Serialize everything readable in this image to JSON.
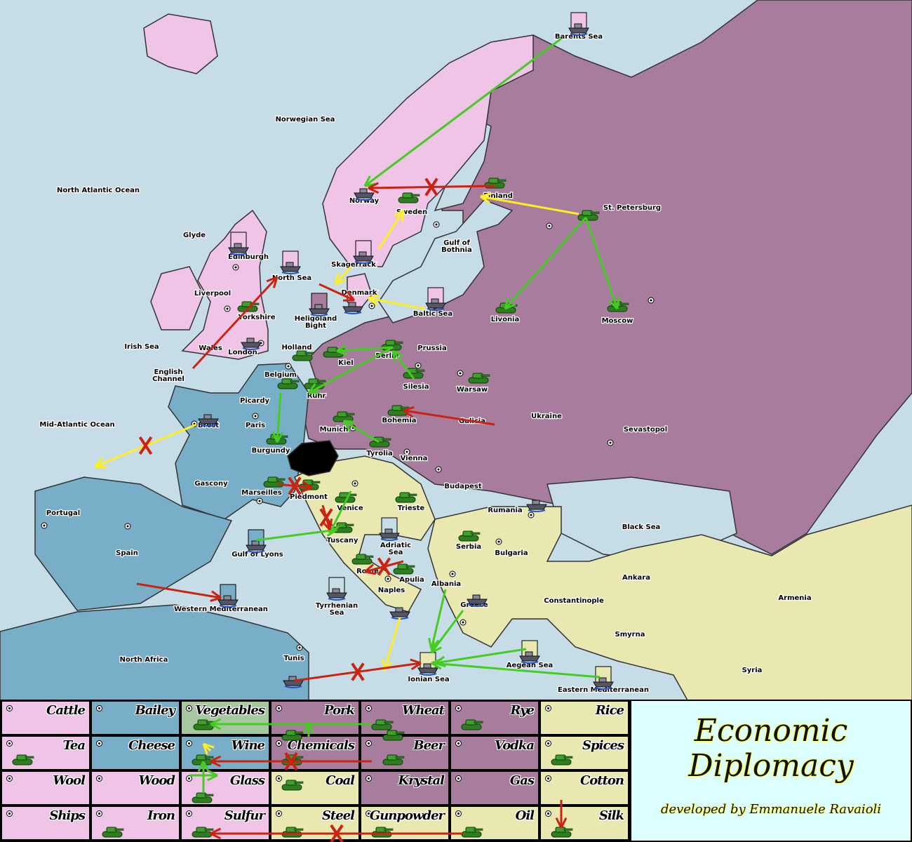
{
  "colors": {
    "sea": "#c6dde8",
    "england_scandinavia": "#f0c4e6",
    "france": "#78aec8",
    "central_east": "#a87c9c",
    "south": "#e8e8b0",
    "vegetables_cell": "#a6c8a0",
    "move_support": "#44cc22",
    "move_convoy": "#ffee22",
    "move_attack": "#cc2211",
    "title_bg": "#dcffff"
  },
  "map": {
    "labels": [
      "Barents Sea",
      "Norwegian Sea",
      "North Atlantic Ocean",
      "Finland",
      "St. Petersburg",
      "Norway",
      "Sweden",
      "Gulf of",
      "Bothnia",
      "Glyde",
      "Edinburgh",
      "Skagerrack",
      "North Sea",
      "Liverpool",
      "Denmark",
      "Baltic Sea",
      "Yorkshire",
      "Heligoland",
      "Bight",
      "Livonia",
      "Moscow",
      "Irish Sea",
      "Wales",
      "London",
      "Holland",
      "Prussia",
      "Kiel",
      "Berlin",
      "English",
      "Channel",
      "Belgium",
      "Silesia",
      "Warsaw",
      "Ruhr",
      "Picardy",
      "Ukraine",
      "Mid-Atlantic Ocean",
      "Brest",
      "Paris",
      "Bohemia",
      "Galicia",
      "Sevastopol",
      "Munich",
      "Burgundy",
      "Tyrolia",
      "Vienna",
      "Gascony",
      "Budapest",
      "Marseilles",
      "Piedmont",
      "Venice",
      "Trieste",
      "Portugal",
      "Rumania",
      "Black Sea",
      "Tuscany",
      "Adriatic",
      "Sea",
      "Serbia",
      "Bulgaria",
      "Gulf of Lyons",
      "Spain",
      "Rome",
      "Apulia",
      "Ankara",
      "Albania",
      "Armenia",
      "Naples",
      "Constantinople",
      "Tyrrhenian",
      "Sea",
      "Greece",
      "Western Mediterranean",
      "Smyrna",
      "North Africa",
      "Tunis",
      "Aegean Sea",
      "Syria",
      "Ionian Sea",
      "Eastern Mediterranean"
    ]
  },
  "units": {
    "fleet_icon": "ship-icon",
    "army_icon": "tank-icon"
  },
  "goods": [
    [
      "Cattle",
      "Bailey",
      "Vegetables",
      "Pork",
      "Wheat",
      "Rye",
      "Rice"
    ],
    [
      "Tea",
      "Cheese",
      "Wine",
      "Chemicals",
      "Beer",
      "Vodka",
      "Spices"
    ],
    [
      "Wool",
      "Wood",
      "Glass",
      "Coal",
      "Krystal",
      "Gas",
      "Cotton"
    ],
    [
      "Ships",
      "Iron",
      "Sulfur",
      "Steel",
      "Gunpowder",
      "Oil",
      "Silk"
    ]
  ],
  "title": {
    "line1": "Economic",
    "line2": "Diplomacy",
    "credit": "developed by Emmanuele Ravaioli"
  }
}
